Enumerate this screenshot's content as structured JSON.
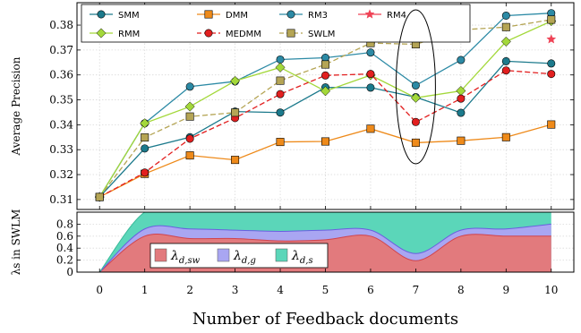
{
  "chart_data": [
    {
      "type": "line",
      "ylabel": "Average Precision",
      "x": [
        0,
        1,
        2,
        3,
        4,
        5,
        6,
        7,
        8,
        9,
        10
      ],
      "ylim": [
        0.306,
        0.389
      ],
      "yticks": [
        0.31,
        0.32,
        0.33,
        0.34,
        0.35,
        0.36,
        0.37,
        0.38
      ],
      "ytick_labels": [
        "0.31",
        "0.32",
        "0.33",
        "0.34",
        "0.35",
        "0.36",
        "0.37",
        "0.38"
      ],
      "grid": true,
      "legend_position": "top",
      "annotation": "ellipse around x=7",
      "series": [
        {
          "name": "SMM",
          "color": "#1c7a8c",
          "marker": "circle",
          "dash": "solid",
          "values": [
            0.311,
            0.3305,
            0.335,
            0.3453,
            0.3449,
            0.355,
            0.3549,
            0.3511,
            0.3448,
            0.3655,
            0.3646
          ]
        },
        {
          "name": "DMM",
          "color": "#ee8a1a",
          "marker": "square",
          "dash": "solid",
          "values": [
            0.311,
            0.3203,
            0.3277,
            0.3259,
            0.3331,
            0.3333,
            0.3384,
            0.3328,
            0.3336,
            0.335,
            0.3401
          ]
        },
        {
          "name": "RM3",
          "color": "#2c8aa5",
          "marker": "circle",
          "dash": "solid",
          "values": [
            0.311,
            0.3406,
            0.3553,
            0.3574,
            0.3662,
            0.3669,
            0.369,
            0.3558,
            0.366,
            0.3838,
            0.3848
          ]
        },
        {
          "name": "RM4",
          "color": "#ef4255",
          "marker": "star",
          "dash": "solid",
          "values": [
            null,
            null,
            null,
            null,
            null,
            null,
            null,
            null,
            null,
            null,
            0.3743
          ]
        },
        {
          "name": "RMM",
          "color": "#a3d83a",
          "marker": "diamond",
          "dash": "solid",
          "values": [
            0.311,
            0.3406,
            0.3473,
            0.3576,
            0.363,
            0.3535,
            0.3599,
            0.3508,
            0.3536,
            0.3734,
            0.3816
          ]
        },
        {
          "name": "MEDMM",
          "color": "#e21f1f",
          "marker": "circle",
          "dash": "dashed",
          "values": [
            0.311,
            0.3208,
            0.3344,
            0.3427,
            0.3523,
            0.3598,
            0.3604,
            0.3411,
            0.3505,
            0.3618,
            0.3604
          ]
        },
        {
          "name": "SWLM",
          "color": "#b5a555",
          "marker": "square",
          "dash": "dashed",
          "values": [
            0.311,
            0.3349,
            0.3433,
            0.3449,
            0.3577,
            0.3642,
            0.3728,
            0.3723,
            0.3781,
            0.3792,
            0.3822
          ]
        }
      ]
    },
    {
      "type": "area",
      "ylabel": "λs in SWLM",
      "xlabel": "Number of Feedback documents",
      "x": [
        0,
        1,
        2,
        3,
        4,
        5,
        6,
        7,
        8,
        9,
        10
      ],
      "xtick_labels": [
        "0",
        "1",
        "2",
        "3",
        "4",
        "5",
        "6",
        "7",
        "8",
        "9",
        "10"
      ],
      "ylim": [
        0,
        1.0
      ],
      "yticks": [
        0,
        0.2,
        0.4,
        0.6,
        0.8
      ],
      "ytick_labels": [
        "0",
        "0.2",
        "0.4",
        "0.6",
        "0.8"
      ],
      "stacked": true,
      "legend_position": "bottom-left",
      "series": [
        {
          "name_base": "λ",
          "name_sub": "d,sw",
          "color": "#e27a7d",
          "values": [
            0,
            0.6,
            0.56,
            0.56,
            0.52,
            0.54,
            0.6,
            0.19,
            0.6,
            0.6,
            0.6
          ]
        },
        {
          "name_base": "λ",
          "name_sub": "d,g",
          "color": "#a9a6f2",
          "values": [
            0,
            0.12,
            0.16,
            0.14,
            0.16,
            0.16,
            0.1,
            0.12,
            0.1,
            0.12,
            0.2
          ]
        },
        {
          "name_base": "λ",
          "name_sub": "d,s",
          "color": "#5bd6b9",
          "values": [
            0,
            0.28,
            0.28,
            0.3,
            0.32,
            0.3,
            0.3,
            0.69,
            0.3,
            0.28,
            0.2
          ]
        }
      ]
    }
  ]
}
